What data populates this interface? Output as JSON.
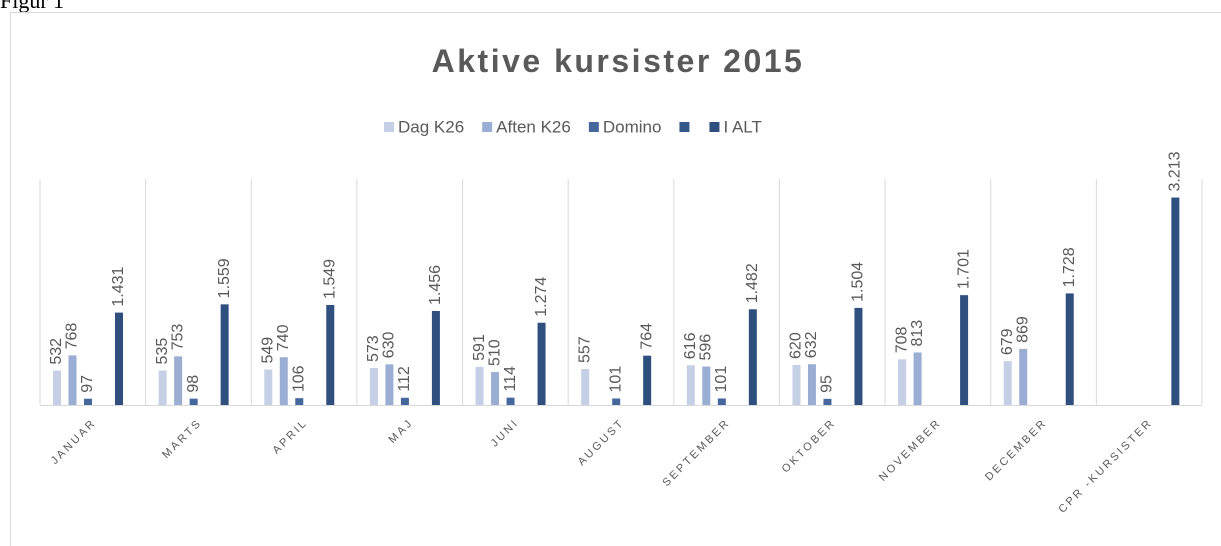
{
  "caption": "Figur 1",
  "chart_data": {
    "type": "bar",
    "title": "Aktive kursister 2015",
    "categories": [
      "JANUAR",
      "MARTS",
      "APRIL",
      "MAJ",
      "JUNI",
      "AUGUST",
      "SEPTEMBER",
      "OKTOBER",
      "NOVEMBER",
      "DECEMBER",
      "CPR -KURSISTER"
    ],
    "series": [
      {
        "name": "Dag K26",
        "color": "#c5cfe5",
        "values": [
          532,
          535,
          549,
          573,
          591,
          557,
          616,
          620,
          708,
          679,
          null
        ]
      },
      {
        "name": "Aften K26",
        "color": "#9aaed4",
        "values": [
          768,
          753,
          740,
          630,
          510,
          null,
          596,
          632,
          813,
          869,
          null
        ]
      },
      {
        "name": "Domino",
        "color": "#44679e",
        "values": [
          97,
          98,
          106,
          112,
          114,
          101,
          101,
          95,
          null,
          null,
          null
        ]
      },
      {
        "name": null,
        "color": "#345a8a",
        "values": [
          null,
          null,
          null,
          null,
          null,
          null,
          null,
          null,
          null,
          null,
          null
        ]
      },
      {
        "name": "I ALT",
        "color": "#2f4f7f",
        "values": [
          1431,
          1559,
          1549,
          1456,
          1274,
          764,
          1482,
          1504,
          1701,
          1728,
          3213
        ],
        "value_labels": [
          "1.431",
          "1.559",
          "1.549",
          "1.456",
          "1.274",
          "764",
          "1.482",
          "1.504",
          "1.701",
          "1.728",
          "3.213"
        ]
      }
    ],
    "ylim": [
      0,
      3500
    ],
    "grid": true,
    "legend": "top"
  }
}
